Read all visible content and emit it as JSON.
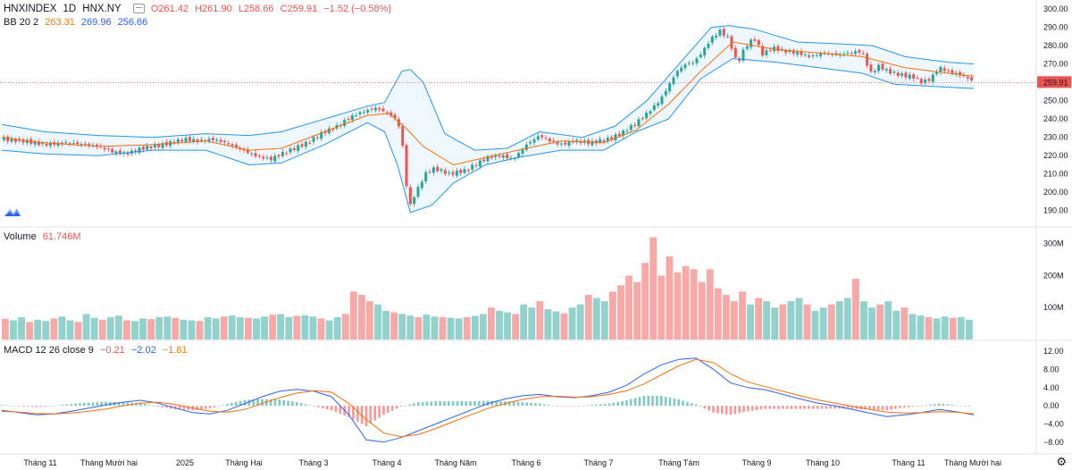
{
  "legend_price": {
    "symbol": "HNXINDEX",
    "interval": "1D",
    "exchange": "HNX.NY",
    "ohlc_o": "O261.42",
    "ohlc_h": "H261.90",
    "ohlc_l": "L258.66",
    "ohlc_c": "C259.91",
    "change": "−1.52 (−0.58%)"
  },
  "legend_bb": {
    "label": "BB 20 2",
    "basis": "263.31",
    "upper": "269.96",
    "lower": "256.66"
  },
  "legend_volume": {
    "label": "Volume",
    "value": "61.746M"
  },
  "legend_macd": {
    "label": "MACD 12 26 close 9",
    "hist": "−0.21",
    "macd": "−2.02",
    "signal": "−1.81"
  },
  "last_price_label": "259.91",
  "colors": {
    "up": "#26a69a",
    "down": "#ef5350",
    "band": "#2196f3",
    "basis": "#ff6d00",
    "macd": "#2962ff",
    "signal": "#ff6d00"
  },
  "icons": [
    "tradingview-logo-icon",
    "settings-gear-icon"
  ],
  "chart_data": [
    {
      "type": "candlestick",
      "title": "HNXINDEX",
      "ylim": [
        185,
        302
      ],
      "yticks": [
        190,
        200,
        210,
        220,
        230,
        240,
        250,
        260,
        270,
        280,
        290,
        300
      ],
      "ytick_labels": [
        "190.00",
        "200.00",
        "210.00",
        "220.00",
        "230.00",
        "240.00",
        "250.00",
        "260.00",
        "270.00",
        "280.00",
        "290.00",
        "300.00"
      ],
      "x_labels": [
        "Tháng 11",
        "Tháng Mười hai",
        "2025",
        "Tháng Hai",
        "Tháng 3",
        "Tháng 4",
        "Tháng Năm",
        "Tháng 6",
        "Tháng 7",
        "Tháng Tám",
        "Tháng 9",
        "Tháng 10",
        "Tháng 11",
        "Tháng Mười hai"
      ],
      "close_path": [
        {
          "x": 0,
          "y": 229
        },
        {
          "x": 10,
          "y": 228
        },
        {
          "x": 20,
          "y": 226
        },
        {
          "x": 30,
          "y": 227
        },
        {
          "x": 40,
          "y": 226
        },
        {
          "x": 45,
          "y": 225
        },
        {
          "x": 52,
          "y": 222
        },
        {
          "x": 58,
          "y": 221
        },
        {
          "x": 65,
          "y": 224
        },
        {
          "x": 75,
          "y": 226
        },
        {
          "x": 85,
          "y": 229
        },
        {
          "x": 92,
          "y": 228
        },
        {
          "x": 98,
          "y": 229
        },
        {
          "x": 104,
          "y": 227
        },
        {
          "x": 110,
          "y": 224
        },
        {
          "x": 118,
          "y": 220
        },
        {
          "x": 125,
          "y": 218
        },
        {
          "x": 130,
          "y": 221
        },
        {
          "x": 136,
          "y": 224
        },
        {
          "x": 142,
          "y": 227
        },
        {
          "x": 150,
          "y": 233
        },
        {
          "x": 156,
          "y": 236
        },
        {
          "x": 162,
          "y": 241
        },
        {
          "x": 168,
          "y": 244
        },
        {
          "x": 174,
          "y": 246
        },
        {
          "x": 180,
          "y": 243
        },
        {
          "x": 184,
          "y": 239
        },
        {
          "x": 186,
          "y": 230
        },
        {
          "x": 188,
          "y": 205
        },
        {
          "x": 190,
          "y": 193
        },
        {
          "x": 193,
          "y": 201
        },
        {
          "x": 197,
          "y": 210
        },
        {
          "x": 200,
          "y": 213
        },
        {
          "x": 204,
          "y": 212
        },
        {
          "x": 208,
          "y": 210
        },
        {
          "x": 212,
          "y": 211
        },
        {
          "x": 216,
          "y": 212
        },
        {
          "x": 220,
          "y": 215
        },
        {
          "x": 226,
          "y": 219
        },
        {
          "x": 232,
          "y": 220
        },
        {
          "x": 238,
          "y": 218
        },
        {
          "x": 244,
          "y": 226
        },
        {
          "x": 250,
          "y": 231
        },
        {
          "x": 255,
          "y": 228
        },
        {
          "x": 260,
          "y": 226
        },
        {
          "x": 266,
          "y": 228
        },
        {
          "x": 274,
          "y": 227
        },
        {
          "x": 282,
          "y": 229
        },
        {
          "x": 288,
          "y": 232
        },
        {
          "x": 294,
          "y": 237
        },
        {
          "x": 300,
          "y": 243
        },
        {
          "x": 306,
          "y": 250
        },
        {
          "x": 310,
          "y": 258
        },
        {
          "x": 314,
          "y": 266
        },
        {
          "x": 318,
          "y": 270
        },
        {
          "x": 322,
          "y": 271
        },
        {
          "x": 326,
          "y": 277
        },
        {
          "x": 330,
          "y": 284
        },
        {
          "x": 334,
          "y": 288
        },
        {
          "x": 338,
          "y": 284
        },
        {
          "x": 342,
          "y": 270
        },
        {
          "x": 346,
          "y": 280
        },
        {
          "x": 350,
          "y": 284
        },
        {
          "x": 354,
          "y": 275
        },
        {
          "x": 358,
          "y": 279
        },
        {
          "x": 364,
          "y": 277
        },
        {
          "x": 370,
          "y": 276
        },
        {
          "x": 376,
          "y": 274
        },
        {
          "x": 382,
          "y": 276
        },
        {
          "x": 388,
          "y": 275
        },
        {
          "x": 394,
          "y": 276
        },
        {
          "x": 400,
          "y": 277
        },
        {
          "x": 404,
          "y": 265
        },
        {
          "x": 408,
          "y": 269
        },
        {
          "x": 412,
          "y": 266
        },
        {
          "x": 418,
          "y": 264
        },
        {
          "x": 424,
          "y": 263
        },
        {
          "x": 428,
          "y": 260
        },
        {
          "x": 432,
          "y": 262
        },
        {
          "x": 436,
          "y": 268
        },
        {
          "x": 440,
          "y": 266
        },
        {
          "x": 446,
          "y": 264
        },
        {
          "x": 450,
          "y": 262
        },
        {
          "x": 452,
          "y": 259.91
        }
      ],
      "bb_upper": [
        {
          "x": 0,
          "y": 237
        },
        {
          "x": 20,
          "y": 233
        },
        {
          "x": 45,
          "y": 231
        },
        {
          "x": 70,
          "y": 230
        },
        {
          "x": 95,
          "y": 232
        },
        {
          "x": 115,
          "y": 231
        },
        {
          "x": 130,
          "y": 233
        },
        {
          "x": 150,
          "y": 240
        },
        {
          "x": 170,
          "y": 247
        },
        {
          "x": 178,
          "y": 249
        },
        {
          "x": 186,
          "y": 266
        },
        {
          "x": 190,
          "y": 267
        },
        {
          "x": 196,
          "y": 260
        },
        {
          "x": 206,
          "y": 232
        },
        {
          "x": 220,
          "y": 223
        },
        {
          "x": 235,
          "y": 224
        },
        {
          "x": 250,
          "y": 233
        },
        {
          "x": 270,
          "y": 230
        },
        {
          "x": 285,
          "y": 236
        },
        {
          "x": 300,
          "y": 250
        },
        {
          "x": 315,
          "y": 270
        },
        {
          "x": 330,
          "y": 290
        },
        {
          "x": 338,
          "y": 291
        },
        {
          "x": 350,
          "y": 289
        },
        {
          "x": 370,
          "y": 282
        },
        {
          "x": 390,
          "y": 281
        },
        {
          "x": 405,
          "y": 280
        },
        {
          "x": 420,
          "y": 274
        },
        {
          "x": 440,
          "y": 271
        },
        {
          "x": 452,
          "y": 270
        }
      ],
      "bb_lower": [
        {
          "x": 0,
          "y": 223
        },
        {
          "x": 20,
          "y": 221
        },
        {
          "x": 45,
          "y": 220
        },
        {
          "x": 70,
          "y": 223
        },
        {
          "x": 95,
          "y": 223
        },
        {
          "x": 115,
          "y": 215
        },
        {
          "x": 130,
          "y": 216
        },
        {
          "x": 150,
          "y": 226
        },
        {
          "x": 170,
          "y": 238
        },
        {
          "x": 178,
          "y": 233
        },
        {
          "x": 184,
          "y": 215
        },
        {
          "x": 190,
          "y": 189
        },
        {
          "x": 200,
          "y": 193
        },
        {
          "x": 210,
          "y": 205
        },
        {
          "x": 225,
          "y": 215
        },
        {
          "x": 240,
          "y": 219
        },
        {
          "x": 260,
          "y": 223
        },
        {
          "x": 280,
          "y": 223
        },
        {
          "x": 295,
          "y": 233
        },
        {
          "x": 310,
          "y": 240
        },
        {
          "x": 325,
          "y": 262
        },
        {
          "x": 340,
          "y": 273
        },
        {
          "x": 360,
          "y": 271
        },
        {
          "x": 380,
          "y": 268
        },
        {
          "x": 400,
          "y": 265
        },
        {
          "x": 415,
          "y": 259
        },
        {
          "x": 430,
          "y": 258
        },
        {
          "x": 445,
          "y": 257
        },
        {
          "x": 452,
          "y": 256.66
        }
      ],
      "bb_basis": [
        {
          "x": 0,
          "y": 230
        },
        {
          "x": 20,
          "y": 227
        },
        {
          "x": 45,
          "y": 225
        },
        {
          "x": 70,
          "y": 226
        },
        {
          "x": 95,
          "y": 228
        },
        {
          "x": 115,
          "y": 223
        },
        {
          "x": 130,
          "y": 224
        },
        {
          "x": 150,
          "y": 233
        },
        {
          "x": 170,
          "y": 242
        },
        {
          "x": 180,
          "y": 243
        },
        {
          "x": 188,
          "y": 235
        },
        {
          "x": 196,
          "y": 225
        },
        {
          "x": 210,
          "y": 215
        },
        {
          "x": 225,
          "y": 219
        },
        {
          "x": 240,
          "y": 223
        },
        {
          "x": 260,
          "y": 228
        },
        {
          "x": 280,
          "y": 227
        },
        {
          "x": 295,
          "y": 234
        },
        {
          "x": 310,
          "y": 248
        },
        {
          "x": 325,
          "y": 266
        },
        {
          "x": 340,
          "y": 282
        },
        {
          "x": 360,
          "y": 278
        },
        {
          "x": 380,
          "y": 276
        },
        {
          "x": 400,
          "y": 274
        },
        {
          "x": 420,
          "y": 268
        },
        {
          "x": 440,
          "y": 265
        },
        {
          "x": 452,
          "y": 263.31
        }
      ]
    },
    {
      "type": "bar",
      "title": "Volume",
      "ylim": [
        0,
        330
      ],
      "yticks": [
        100,
        200,
        300
      ],
      "ytick_labels": [
        "100M",
        "200M",
        "300M"
      ],
      "values": [
        65,
        60,
        70,
        55,
        62,
        58,
        66,
        72,
        60,
        55,
        80,
        68,
        62,
        70,
        75,
        60,
        58,
        66,
        64,
        70,
        72,
        68,
        62,
        60,
        58,
        70,
        66,
        72,
        75,
        70,
        68,
        66,
        72,
        78,
        80,
        70,
        74,
        76,
        72,
        66,
        60,
        70,
        80,
        150,
        140,
        120,
        110,
        90,
        85,
        80,
        75,
        70,
        78,
        72,
        70,
        68,
        66,
        70,
        74,
        80,
        100,
        90,
        85,
        80,
        110,
        100,
        120,
        95,
        88,
        82,
        100,
        110,
        140,
        130,
        120,
        150,
        170,
        200,
        180,
        240,
        320,
        200,
        260,
        210,
        230,
        220,
        180,
        220,
        160,
        140,
        120,
        150,
        110,
        130,
        120,
        100,
        110,
        120,
        130,
        110,
        90,
        100,
        110,
        120,
        130,
        190,
        120,
        100,
        110,
        120,
        90,
        100,
        80,
        75,
        70,
        66,
        72,
        68,
        70,
        62
      ]
    },
    {
      "type": "line",
      "title": "MACD 12 26 close 9",
      "ylim": [
        -10,
        13
      ],
      "yticks": [
        -8,
        -4,
        0,
        4,
        8,
        12
      ],
      "ytick_labels": [
        "−8.00",
        "−4.00",
        "0.00",
        "4.00",
        "8.00",
        "12.00"
      ],
      "series": [
        {
          "name": "MACD",
          "values": [
            -1,
            -1.5,
            -2,
            -1.8,
            -1.2,
            -0.5,
            0.2,
            0.8,
            1.2,
            0.6,
            -0.5,
            -1.5,
            -1.8,
            -1,
            0.5,
            2,
            3.2,
            3.6,
            3.2,
            2,
            -2,
            -7.5,
            -8,
            -7,
            -5.5,
            -4,
            -2.5,
            -1,
            0.5,
            1.5,
            2.2,
            2.5,
            2,
            1.8,
            2.2,
            3,
            4.5,
            7,
            9,
            10.2,
            10.5,
            8,
            5,
            4,
            3.5,
            2.5,
            1.5,
            0.6,
            0,
            -0.8,
            -1.6,
            -2.4,
            -2,
            -1.5,
            -0.8,
            -1.3,
            -2
          ]
        },
        {
          "name": "Signal",
          "values": [
            -1.2,
            -1.4,
            -1.7,
            -1.8,
            -1.6,
            -1.2,
            -0.7,
            0,
            0.6,
            0.8,
            0.3,
            -0.5,
            -1.2,
            -1.4,
            -0.8,
            0.5,
            1.8,
            2.8,
            3.3,
            3,
            0.5,
            -3,
            -6,
            -6.8,
            -6.3,
            -5,
            -3.5,
            -2,
            -0.6,
            0.5,
            1.4,
            2,
            2.1,
            1.9,
            2,
            2.5,
            3.3,
            4.8,
            6.8,
            8.8,
            10.2,
            9.5,
            7,
            5.2,
            4.2,
            3.2,
            2.2,
            1.3,
            0.6,
            -0.1,
            -0.8,
            -1.4,
            -1.6,
            -1.5,
            -1.3,
            -1.4,
            -1.81
          ]
        }
      ]
    }
  ]
}
